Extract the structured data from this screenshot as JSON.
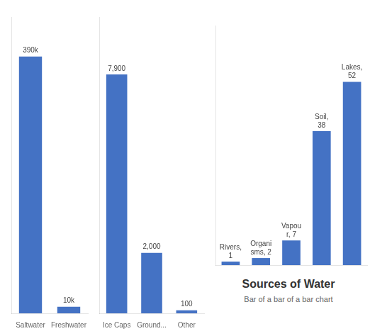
{
  "chart_data": [
    {
      "type": "bar",
      "categories": [
        "Saltwater",
        "Freshwater"
      ],
      "values": [
        390000,
        10000
      ],
      "value_labels": [
        "390k",
        "10k"
      ],
      "data_labels": true,
      "color": "#4472C4",
      "ylim": [
        0,
        450000
      ],
      "tick_labels": "x",
      "grid": false
    },
    {
      "type": "bar",
      "categories": [
        "Ice Caps",
        "Ground...",
        "Other"
      ],
      "values": [
        7900,
        2000,
        100
      ],
      "value_labels": [
        "7,900",
        "2,000",
        "100"
      ],
      "data_labels": true,
      "color": "#4472C4",
      "ylim": [
        0,
        9800
      ],
      "tick_labels": "x",
      "grid": false
    },
    {
      "type": "bar",
      "title": "Sources of Water",
      "subtitle": "Bar of a bar of a bar chart",
      "categories": [
        null,
        null,
        null,
        null,
        null
      ],
      "values": [
        1,
        2,
        7,
        38,
        52
      ],
      "value_labels": [
        "Rivers,\n1",
        "Organi\nsms, 2",
        "Vapou\nr, 7",
        "Soil,\n38",
        "Lakes,\n52"
      ],
      "data_labels": true,
      "color": "#4472C4",
      "ylim": [
        0,
        68
      ],
      "tick_labels": false,
      "grid": false
    }
  ]
}
